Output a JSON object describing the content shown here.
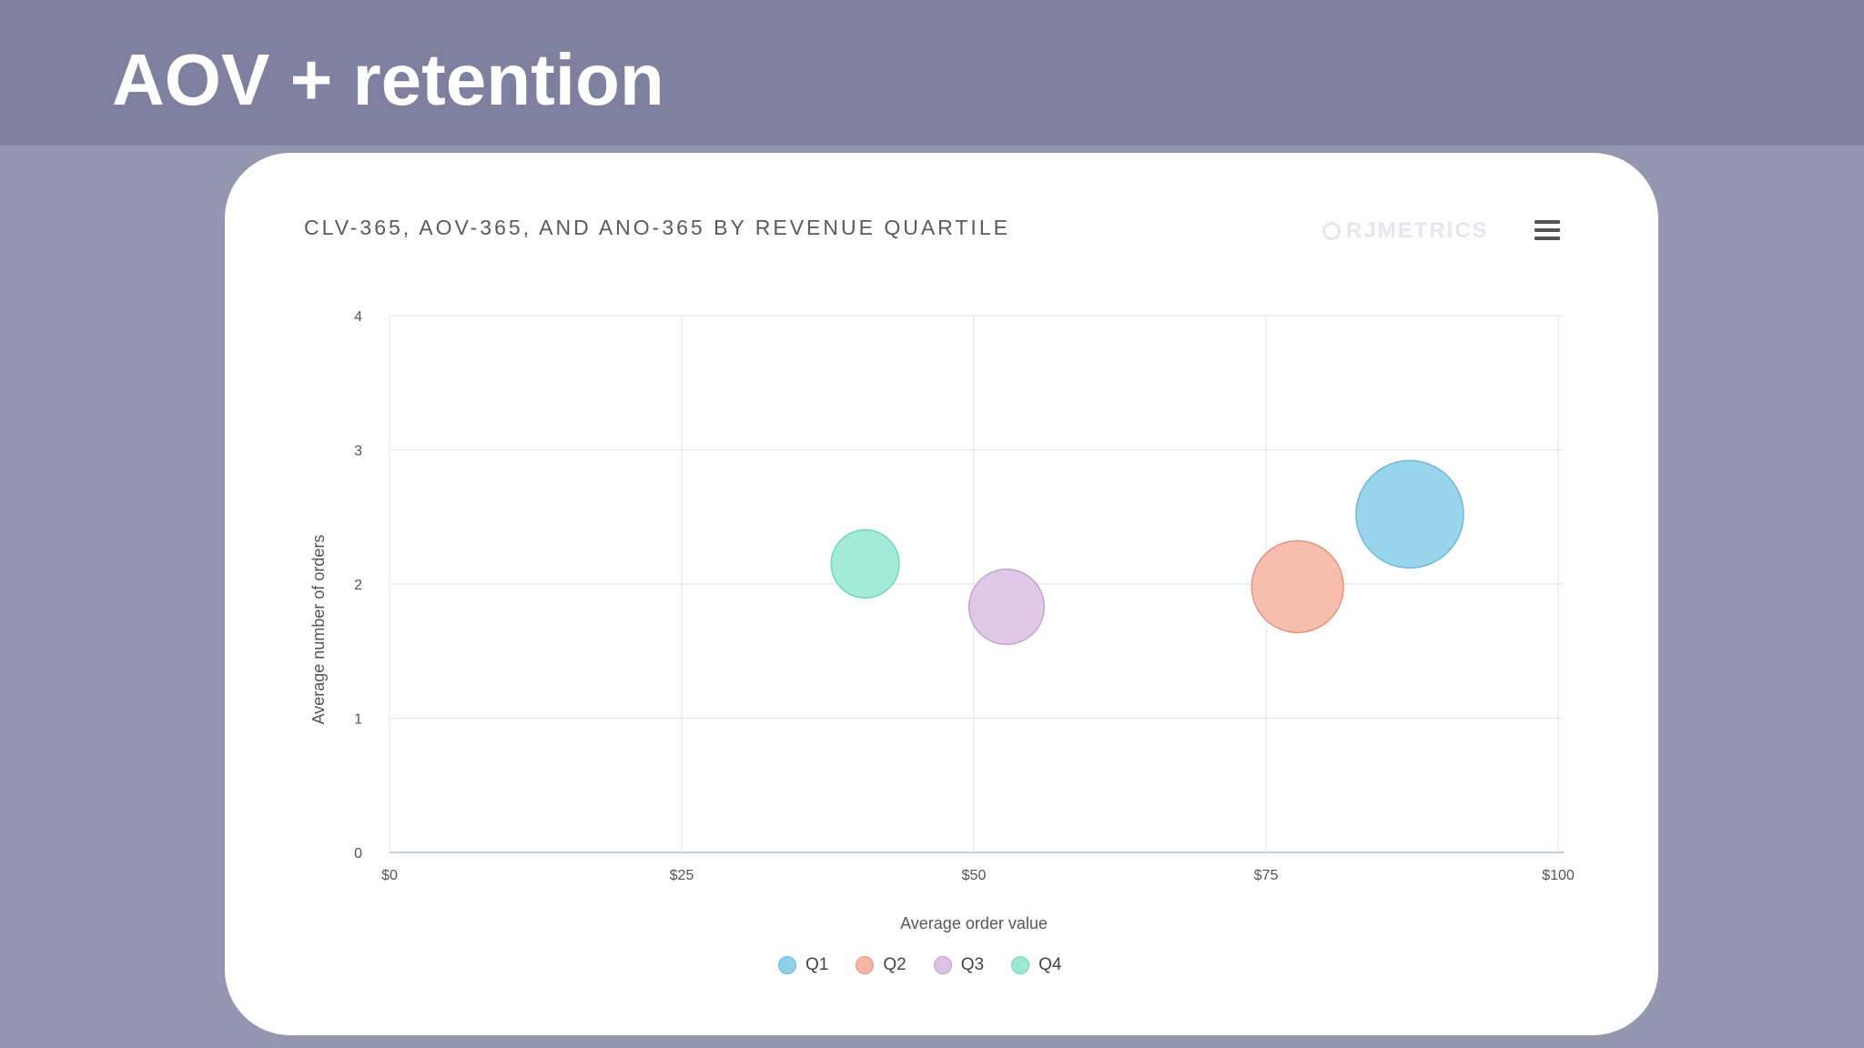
{
  "slide": {
    "title": "AOV + retention"
  },
  "brand": {
    "name": "RJMETRICS"
  },
  "chart_data": {
    "type": "scatter",
    "subtype": "bubble",
    "title": "CLV-365, AOV-365, AND ANO-365 BY REVENUE QUARTILE",
    "xlabel": "Average order value",
    "ylabel": "Average number of orders",
    "xlim": [
      0,
      100
    ],
    "ylim": [
      0,
      4
    ],
    "x_ticks": [
      0,
      25,
      50,
      75,
      100
    ],
    "x_tick_labels": [
      "$0",
      "$25",
      "$50",
      "$75",
      "$100"
    ],
    "y_ticks": [
      0,
      1,
      2,
      3,
      4
    ],
    "y_tick_labels": [
      "0",
      "1",
      "2",
      "3",
      "4"
    ],
    "grid": true,
    "legend_position": "bottom-center",
    "series": [
      {
        "name": "Q1",
        "color": "#8fd0ea",
        "stroke": "#6bb8db",
        "x": 87.3,
        "y": 2.52,
        "size": 100
      },
      {
        "name": "Q2",
        "color": "#f4b7a6",
        "stroke": "#e7917a",
        "x": 77.7,
        "y": 1.98,
        "size": 73
      },
      {
        "name": "Q3",
        "color": "#dcc3e3",
        "stroke": "#c4a1cf",
        "x": 52.8,
        "y": 1.83,
        "size": 49
      },
      {
        "name": "Q4",
        "color": "#9ae8d4",
        "stroke": "#6fd6bb",
        "x": 40.7,
        "y": 2.15,
        "size": 40
      }
    ]
  }
}
